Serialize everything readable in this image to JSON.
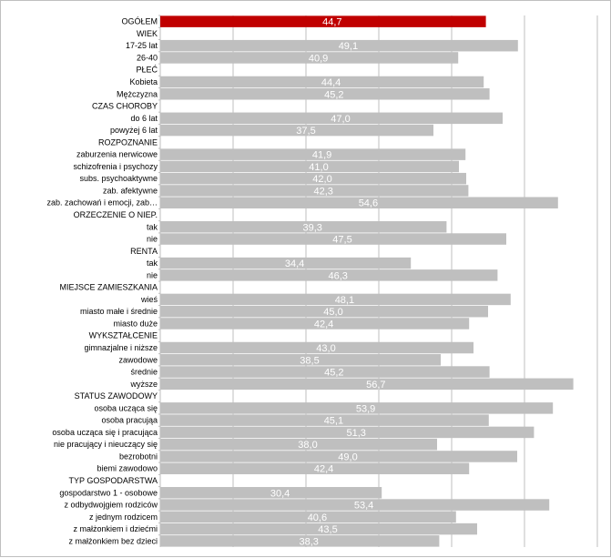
{
  "chart_data": {
    "type": "bar",
    "orientation": "horizontal",
    "xlim": [
      0,
      60
    ],
    "grid": true,
    "colors": {
      "highlight": "#c00000",
      "bar": "#bfbfbf",
      "grid": "#bfbfbf",
      "value_label": "#ffffff"
    },
    "rows": [
      {
        "label": "OGÓŁEM",
        "value": 44.7,
        "value_label": "44,7",
        "highlight": true
      },
      {
        "label": "WIEK",
        "value": null,
        "value_label": ""
      },
      {
        "label": "17-25 lat",
        "value": 49.1,
        "value_label": "49,1"
      },
      {
        "label": "26-40",
        "value": 40.9,
        "value_label": "40,9"
      },
      {
        "label": "PŁEĆ",
        "value": null,
        "value_label": ""
      },
      {
        "label": "Kobieta",
        "value": 44.4,
        "value_label": "44,4"
      },
      {
        "label": "Mężczyzna",
        "value": 45.2,
        "value_label": "45,2"
      },
      {
        "label": "CZAS CHOROBY",
        "value": null,
        "value_label": ""
      },
      {
        "label": "do 6 lat",
        "value": 47.0,
        "value_label": "47,0"
      },
      {
        "label": "powyżej 6 lat",
        "value": 37.5,
        "value_label": "37,5"
      },
      {
        "label": "ROZPOZNANIE",
        "value": null,
        "value_label": ""
      },
      {
        "label": "zaburzenia nerwicowe",
        "value": 41.9,
        "value_label": "41,9"
      },
      {
        "label": "schizofrenia i psychozy",
        "value": 41.0,
        "value_label": "41,0"
      },
      {
        "label": "subs. psychoaktywne",
        "value": 42.0,
        "value_label": "42,0"
      },
      {
        "label": "zab. afektywne",
        "value": 42.3,
        "value_label": "42,3"
      },
      {
        "label": "zab. zachowań i emocji, zab…",
        "value": 54.6,
        "value_label": "54,6"
      },
      {
        "label": "ORZECZENIE O NIEP.",
        "value": null,
        "value_label": ""
      },
      {
        "label": "tak",
        "value": 39.3,
        "value_label": "39,3"
      },
      {
        "label": "nie",
        "value": 47.5,
        "value_label": "47,5"
      },
      {
        "label": "RENTA",
        "value": null,
        "value_label": ""
      },
      {
        "label": "tak",
        "value": 34.4,
        "value_label": "34,4"
      },
      {
        "label": "nie",
        "value": 46.3,
        "value_label": "46,3"
      },
      {
        "label": "MIEJSCE ZAMIESZKANIA",
        "value": null,
        "value_label": ""
      },
      {
        "label": "wieś",
        "value": 48.1,
        "value_label": "48,1"
      },
      {
        "label": "miasto małe i średnie",
        "value": 45.0,
        "value_label": "45,0"
      },
      {
        "label": "miasto duże",
        "value": 42.4,
        "value_label": "42,4"
      },
      {
        "label": "WYKSZTAŁCENIE",
        "value": null,
        "value_label": ""
      },
      {
        "label": "gimnazjalne i niższe",
        "value": 43.0,
        "value_label": "43,0"
      },
      {
        "label": "zawodowe",
        "value": 38.5,
        "value_label": "38,5"
      },
      {
        "label": "średnie",
        "value": 45.2,
        "value_label": "45,2"
      },
      {
        "label": "wyższe",
        "value": 56.7,
        "value_label": "56,7"
      },
      {
        "label": "STATUS ZAWODOWY",
        "value": null,
        "value_label": ""
      },
      {
        "label": "osoba ucząca się",
        "value": 53.9,
        "value_label": "53,9"
      },
      {
        "label": "osoba pracująa",
        "value": 45.1,
        "value_label": "45,1"
      },
      {
        "label": "osoba ucząca się i pracująca",
        "value": 51.3,
        "value_label": "51,3"
      },
      {
        "label": "nie pracujący i nieuczący się",
        "value": 38.0,
        "value_label": "38,0"
      },
      {
        "label": "bezrobotni",
        "value": 49.0,
        "value_label": "49,0"
      },
      {
        "label": "biemi zawodowo",
        "value": 42.4,
        "value_label": "42,4"
      },
      {
        "label": "TYP GOSPODARSTWA",
        "value": null,
        "value_label": ""
      },
      {
        "label": "gospodarstwo 1 - osobowe",
        "value": 30.4,
        "value_label": "30,4"
      },
      {
        "label": "z odbydwojgiem rodziców",
        "value": 53.4,
        "value_label": "53,4"
      },
      {
        "label": "z jednym rodzicem",
        "value": 40.6,
        "value_label": "40,6"
      },
      {
        "label": "z małżonkiem i dziećmi",
        "value": 43.5,
        "value_label": "43,5"
      },
      {
        "label": "z małżonkiem bez dzieci",
        "value": 38.3,
        "value_label": "38,3"
      }
    ]
  }
}
